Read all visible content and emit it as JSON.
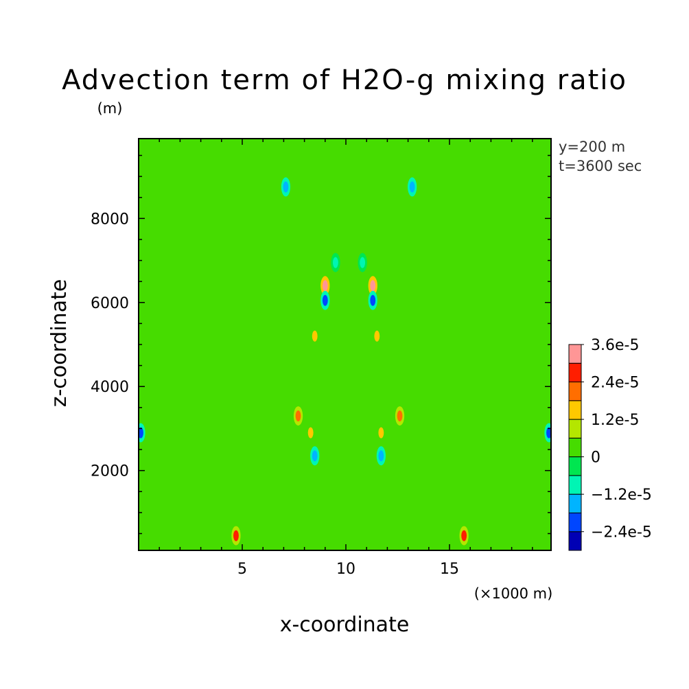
{
  "chart_data": {
    "type": "heatmap",
    "title": "Advection term of H2O-g mixing ratio",
    "xlabel": "x-coordinate",
    "ylabel": "z-coordinate",
    "x_unit": "(×1000 m)",
    "y_unit": "(m)",
    "xlim": [
      0,
      19.9
    ],
    "ylim": [
      100,
      9900
    ],
    "x_ticks": [
      5,
      10,
      15
    ],
    "y_ticks": [
      2000,
      4000,
      6000,
      8000
    ],
    "annotations": [
      "y=200 m",
      "t=3600 sec"
    ],
    "colorbar": {
      "label_values": [
        "3.6e-5",
        "2.4e-5",
        "1.2e-5",
        "0",
        "−1.2e-5",
        "−2.4e-5"
      ],
      "levels": [
        "−3.0e-5",
        "−2.4e-5",
        "−1.8e-5",
        "−1.2e-5",
        "−0.6e-5",
        "0",
        "0.6e-5",
        "1.2e-5",
        "1.8e-5",
        "2.4e-5",
        "3.0e-5",
        "3.6e-5"
      ],
      "colors": [
        "#0000b4",
        "#0046ff",
        "#00b4ff",
        "#00f5b4",
        "#00e650",
        "#46dc00",
        "#b4e600",
        "#ffc800",
        "#ff6e00",
        "#ff1e00",
        "#ff9696"
      ]
    },
    "background_value": 0.0,
    "features": [
      {
        "x": 9.0,
        "z": 6400,
        "value": 3e-05
      },
      {
        "x": 11.3,
        "z": 6400,
        "value": 3e-05
      },
      {
        "x": 9.0,
        "z": 6050,
        "value": -2.4e-05
      },
      {
        "x": 11.3,
        "z": 6050,
        "value": -2.4e-05
      },
      {
        "x": 4.7,
        "z": 450,
        "value": 2.4e-05
      },
      {
        "x": 15.7,
        "z": 450,
        "value": 2.4e-05
      },
      {
        "x": 0.1,
        "z": 2900,
        "value": -2.4e-05
      },
      {
        "x": 19.8,
        "z": 2900,
        "value": -2.4e-05
      },
      {
        "x": 7.7,
        "z": 3300,
        "value": 1.8e-05
      },
      {
        "x": 12.6,
        "z": 3300,
        "value": 1.8e-05
      },
      {
        "x": 8.3,
        "z": 2900,
        "value": 1.2e-05
      },
      {
        "x": 11.7,
        "z": 2900,
        "value": 1.2e-05
      },
      {
        "x": 8.5,
        "z": 5200,
        "value": 1.2e-05
      },
      {
        "x": 11.5,
        "z": 5200,
        "value": 1.2e-05
      },
      {
        "x": 7.1,
        "z": 8750,
        "value": -1.8e-05
      },
      {
        "x": 13.2,
        "z": 8750,
        "value": -1.8e-05
      },
      {
        "x": 9.5,
        "z": 6950,
        "value": -1.2e-05
      },
      {
        "x": 10.8,
        "z": 6950,
        "value": -1.2e-05
      },
      {
        "x": 8.5,
        "z": 2350,
        "value": -1.8e-05
      },
      {
        "x": 11.7,
        "z": 2350,
        "value": -1.8e-05
      }
    ]
  }
}
